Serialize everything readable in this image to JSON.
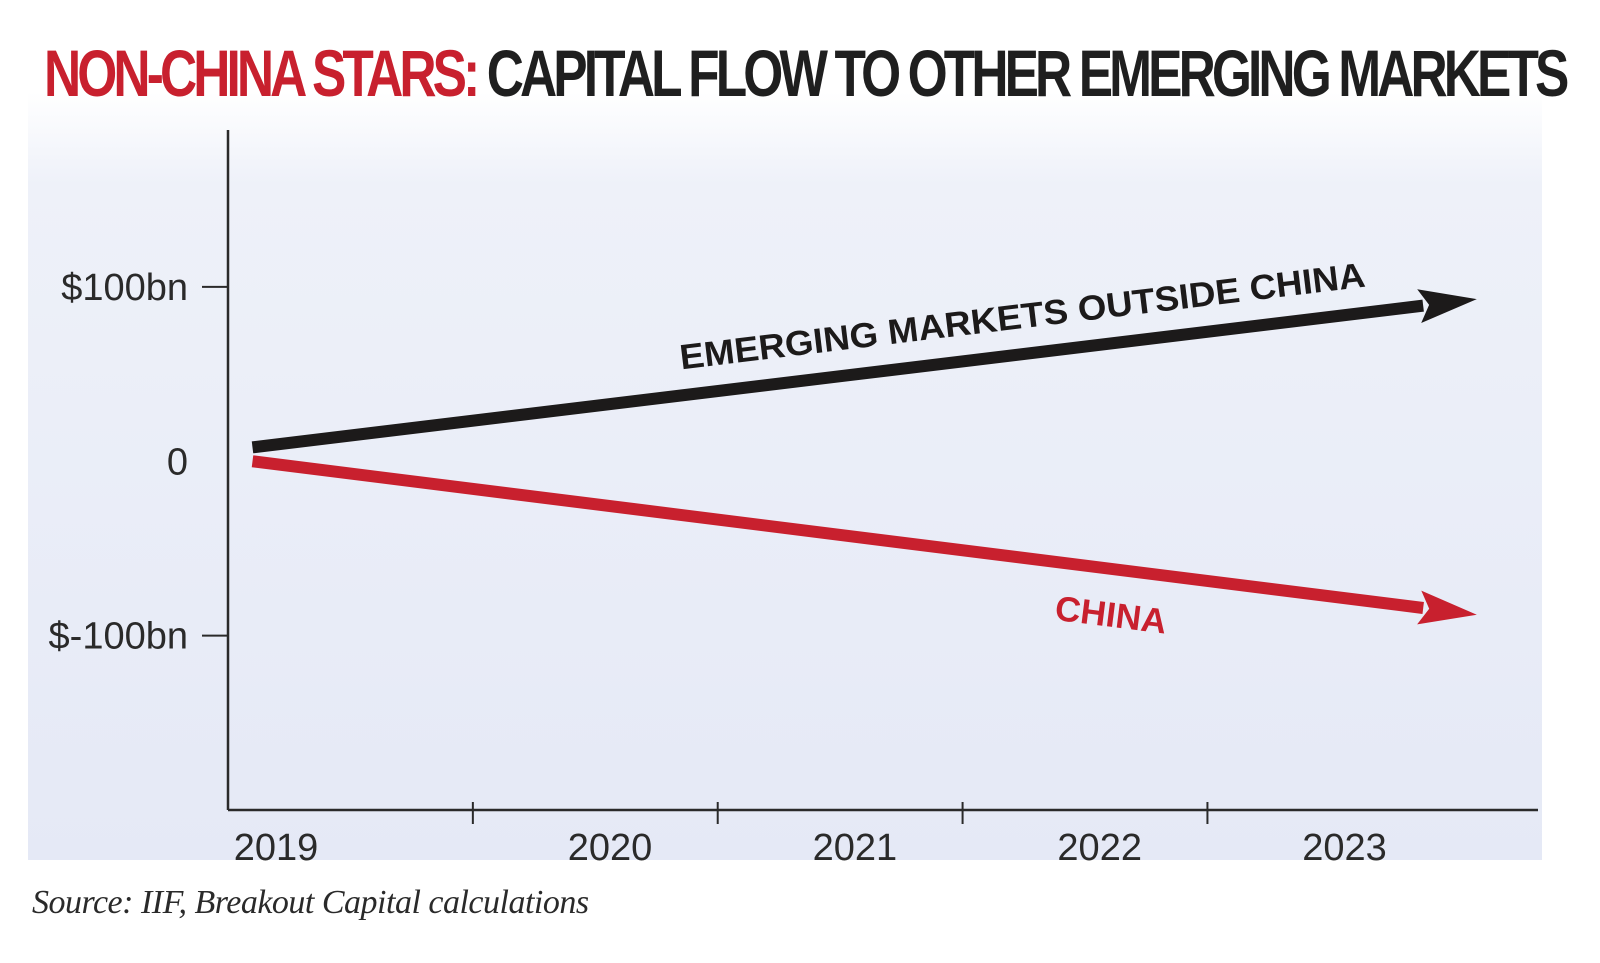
{
  "title": {
    "highlight": "NON-CHINA STARS:",
    "rest": " CAPITAL FLOW TO OTHER EMERGING MARKETS"
  },
  "source": "Source: IIF, Breakout Capital calculations",
  "colors": {
    "accent_red": "#c8202e",
    "series_black": "#1c1a1a",
    "axis": "#2a2a2a"
  },
  "chart_data": {
    "type": "line",
    "x_ticks": [
      "2019",
      "2020",
      "2021",
      "2022",
      "2023"
    ],
    "y_ticks": [
      {
        "value": 100,
        "label": "$100bn"
      },
      {
        "value": 0,
        "label": "0"
      },
      {
        "value": -100,
        "label": "$-100bn"
      }
    ],
    "ylim": [
      -200,
      190
    ],
    "xlim": [
      2019,
      2024.35
    ],
    "grid": false,
    "arrowheads": true,
    "series": [
      {
        "name": "EMERGING MARKETS OUTSIDE CHINA",
        "color": "#1c1a1a",
        "x": [
          2019.1,
          2024.1
        ],
        "y": [
          8,
          93
        ]
      },
      {
        "name": "CHINA",
        "color": "#c8202e",
        "x": [
          2019.1,
          2024.1
        ],
        "y": [
          0,
          -88
        ]
      }
    ]
  }
}
